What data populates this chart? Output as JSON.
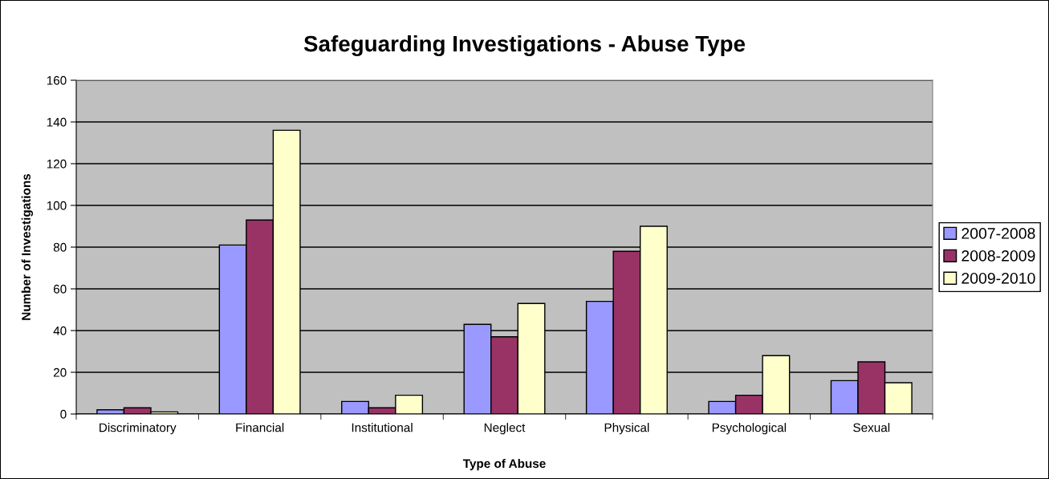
{
  "chart_data": {
    "type": "bar",
    "title": "Safeguarding Investigations - Abuse Type",
    "xlabel": "Type of Abuse",
    "ylabel": "Number of Investigations",
    "categories": [
      "Discriminatory",
      "Financial",
      "Institutional",
      "Neglect",
      "Physical",
      "Psychological",
      "Sexual"
    ],
    "series": [
      {
        "name": "2007-2008",
        "color": "#9999ff",
        "values": [
          2,
          81,
          6,
          43,
          54,
          6,
          16
        ]
      },
      {
        "name": "2008-2009",
        "color": "#993366",
        "values": [
          3,
          93,
          3,
          37,
          78,
          9,
          25
        ]
      },
      {
        "name": "2009-2010",
        "color": "#ffffcc",
        "values": [
          1,
          136,
          9,
          53,
          90,
          28,
          15
        ]
      }
    ],
    "ylim": [
      0,
      160
    ],
    "yticks": [
      0,
      20,
      40,
      60,
      80,
      100,
      120,
      140,
      160
    ],
    "grid": "y",
    "legend": "right"
  }
}
